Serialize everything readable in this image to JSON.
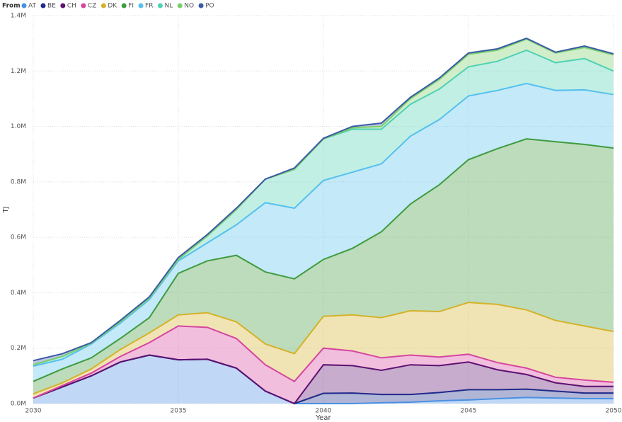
{
  "chart_data": {
    "type": "stacked-area",
    "legend_title": "From",
    "x_label": "Year",
    "y_label": "TJ",
    "x": [
      2030,
      2031,
      2032,
      2033,
      2034,
      2035,
      2036,
      2037,
      2038,
      2039,
      2040,
      2041,
      2042,
      2043,
      2044,
      2045,
      2046,
      2047,
      2048,
      2049,
      2050
    ],
    "xlim": [
      2030,
      2050
    ],
    "xticks": [
      2030,
      2035,
      2040,
      2045,
      2050
    ],
    "ylim": [
      0,
      1400000
    ],
    "yticks": [
      {
        "value": 0,
        "label": "0.0M"
      },
      {
        "value": 200000,
        "label": "0.2M"
      },
      {
        "value": 400000,
        "label": "0.4M"
      },
      {
        "value": 600000,
        "label": "0.6M"
      },
      {
        "value": 800000,
        "label": "0.8M"
      },
      {
        "value": 1000000,
        "label": "1.0M"
      },
      {
        "value": 1200000,
        "label": "1.2M"
      },
      {
        "value": 1400000,
        "label": "1.4M"
      }
    ],
    "grid": true,
    "series": [
      {
        "name": "AT",
        "color": "#4a90e2",
        "values": [
          20000,
          60000,
          100000,
          150000,
          175000,
          158000,
          160000,
          128000,
          45000,
          0,
          0,
          0,
          3000,
          5000,
          10000,
          13000,
          18000,
          22000,
          20000,
          18000,
          18000
        ]
      },
      {
        "name": "BE",
        "color": "#1f2a8a",
        "values": [
          0,
          0,
          0,
          0,
          0,
          0,
          0,
          0,
          0,
          0,
          37000,
          38000,
          30000,
          28000,
          30000,
          37000,
          32000,
          30000,
          25000,
          20000,
          20000
        ]
      },
      {
        "name": "CH",
        "color": "#5e1170",
        "values": [
          0,
          0,
          0,
          0,
          0,
          0,
          0,
          0,
          0,
          0,
          103000,
          99000,
          87000,
          107000,
          97000,
          100000,
          72000,
          53000,
          30000,
          24000,
          24000
        ]
      },
      {
        "name": "CZ",
        "color": "#d6459f",
        "values": [
          0,
          5000,
          10000,
          20000,
          45000,
          122000,
          115000,
          107000,
          95000,
          80000,
          60000,
          53000,
          45000,
          35000,
          31000,
          28000,
          26000,
          23000,
          20000,
          23000,
          15000
        ]
      },
      {
        "name": "DK",
        "color": "#d4b22a",
        "values": [
          15000,
          10000,
          15000,
          25000,
          35000,
          40000,
          53000,
          60000,
          75000,
          100000,
          115000,
          130000,
          145000,
          160000,
          164000,
          187000,
          210000,
          210000,
          205000,
          195000,
          183000
        ]
      },
      {
        "name": "FI",
        "color": "#3f9b3f",
        "values": [
          45000,
          50000,
          40000,
          40000,
          55000,
          150000,
          187000,
          240000,
          260000,
          270000,
          205000,
          240000,
          310000,
          385000,
          458000,
          515000,
          562000,
          617000,
          645000,
          655000,
          662000
        ]
      },
      {
        "name": "FR",
        "color": "#55c0ee",
        "values": [
          55000,
          35000,
          50000,
          55000,
          65000,
          45000,
          65000,
          110000,
          250000,
          255000,
          285000,
          275000,
          245000,
          245000,
          235000,
          230000,
          210000,
          200000,
          185000,
          197000,
          193000
        ]
      },
      {
        "name": "NL",
        "color": "#4ed2b3",
        "values": [
          5000,
          10000,
          3000,
          5000,
          5000,
          5000,
          25000,
          55000,
          85000,
          140000,
          150000,
          155000,
          125000,
          115000,
          110000,
          105000,
          105000,
          120000,
          100000,
          113000,
          85000
        ]
      },
      {
        "name": "NO",
        "color": "#7bcf6b",
        "values": [
          0,
          0,
          0,
          0,
          0,
          0,
          0,
          0,
          0,
          0,
          0,
          5000,
          10000,
          20000,
          35000,
          45000,
          40000,
          40000,
          35000,
          40000,
          58000
        ]
      },
      {
        "name": "PO",
        "color": "#3b5ba5",
        "values": [
          15000,
          10000,
          2000,
          5000,
          5000,
          7000,
          5000,
          5000,
          0,
          5000,
          2000,
          5000,
          12000,
          5000,
          5000,
          5000,
          5000,
          3000,
          3000,
          5000,
          4000
        ]
      }
    ]
  }
}
